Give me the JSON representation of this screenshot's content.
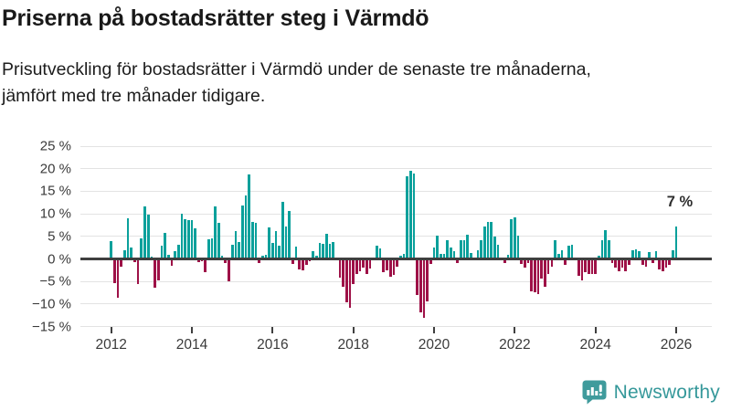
{
  "header": {
    "title": "Priserna på bostadsrätter steg i Värmdö",
    "subtitle": "Prisutveckling för bostadsrätter i Värmdö under de senaste tre månaderna, jämfört med tre månader tidigare."
  },
  "footer": {
    "brand": "Newsworthy",
    "logo_icon": "newsworthy-speech-bubble-with-bar-chart-icon"
  },
  "chart_data": {
    "type": "bar",
    "title": "Priserna på bostadsrätter steg i Värmdö",
    "unit": "%",
    "ylim": [
      -15,
      25
    ],
    "grid": true,
    "start_month": "2012-01",
    "frequency": "monthly",
    "y_ticks": [
      {
        "value": 25,
        "label": "25 %"
      },
      {
        "value": 20,
        "label": "20 %"
      },
      {
        "value": 15,
        "label": "15 %"
      },
      {
        "value": 10,
        "label": "10 %"
      },
      {
        "value": 5,
        "label": "5 %"
      },
      {
        "value": 0,
        "label": "0 %"
      },
      {
        "value": -5,
        "label": "−5 %"
      },
      {
        "value": -10,
        "label": "−10 %"
      },
      {
        "value": -15,
        "label": "−15 %"
      }
    ],
    "x_ticks": [
      {
        "label": "2012",
        "month_index": 0
      },
      {
        "label": "2014",
        "month_index": 24
      },
      {
        "label": "2016",
        "month_index": 48
      },
      {
        "label": "2018",
        "month_index": 72
      },
      {
        "label": "2020",
        "month_index": 96
      },
      {
        "label": "2022",
        "month_index": 120
      },
      {
        "label": "2024",
        "month_index": 144
      },
      {
        "label": "2026",
        "month_index": 168
      }
    ],
    "colors": {
      "positive": "#0aa09b",
      "negative": "#9e1147"
    },
    "annotation": {
      "text": "7 %",
      "value": 7.2,
      "month": "2026-01"
    },
    "monthly_change_pct": [
      {
        "year": 2012,
        "values": [
          4.0,
          -5.3,
          -8.7,
          -1.8,
          2.0,
          9.0,
          2.5,
          -0.8,
          -5.6,
          4.6,
          11.7,
          9.8
        ]
      },
      {
        "year": 2013,
        "values": [
          0.5,
          -6.3,
          -4.8,
          3.0,
          5.7,
          0.9,
          -1.5,
          1.7,
          3.2,
          10.1,
          8.8,
          8.6
        ]
      },
      {
        "year": 2014,
        "values": [
          8.6,
          6.8,
          -0.7,
          -0.6,
          -3.0,
          4.4,
          4.5,
          11.6,
          8.0,
          0.8,
          -0.9,
          -5.0
        ]
      },
      {
        "year": 2015,
        "values": [
          3.2,
          6.1,
          3.7,
          11.9,
          14.0,
          18.7,
          8.2,
          8.0,
          -0.9,
          0.8,
          1.0,
          6.9
        ]
      },
      {
        "year": 2016,
        "values": [
          3.5,
          6.2,
          3.0,
          12.7,
          7.1,
          10.6,
          -1.1,
          2.7,
          -2.4,
          -2.5,
          -1.4,
          -0.5
        ]
      },
      {
        "year": 2017,
        "values": [
          1.7,
          0.8,
          3.5,
          3.4,
          5.5,
          3.3,
          3.7,
          -0.4,
          -4.2,
          -6.2,
          -9.7,
          -10.8
        ]
      },
      {
        "year": 2018,
        "values": [
          -5.5,
          -3.4,
          -2.7,
          -1.9,
          -3.4,
          -2.2,
          -0.3,
          2.9,
          2.4,
          -3.0,
          -2.6,
          -3.9
        ]
      },
      {
        "year": 2019,
        "values": [
          -3.5,
          -1.7,
          0.7,
          1.1,
          18.3,
          19.6,
          19.0,
          -8.0,
          -11.8,
          -13.0,
          -9.4,
          -1.2
        ]
      },
      {
        "year": 2020,
        "values": [
          2.5,
          5.1,
          1.2,
          1.2,
          4.2,
          2.5,
          1.7,
          -0.9,
          4.2,
          4.2,
          5.4,
          1.3
        ]
      },
      {
        "year": 2021,
        "values": [
          0.2,
          2.0,
          4.2,
          7.2,
          8.3,
          8.3,
          5.0,
          3.1,
          -0.4,
          -1.0,
          1.0,
          8.8
        ]
      },
      {
        "year": 2022,
        "values": [
          9.2,
          5.1,
          -1.2,
          -2.0,
          -1.0,
          -7.1,
          -7.4,
          -7.8,
          -4.4,
          -6.2,
          -3.4,
          -1.7
        ]
      },
      {
        "year": 2023,
        "values": [
          4.1,
          1.2,
          2.0,
          -1.4,
          3.0,
          3.2,
          -0.4,
          -3.7,
          -4.7,
          -3.0,
          -3.4,
          -3.4
        ]
      },
      {
        "year": 2024,
        "values": [
          -3.4,
          0.8,
          4.2,
          6.4,
          4.2,
          -1.0,
          -2.0,
          -2.7,
          -2.0,
          -2.8,
          -1.4,
          2.0
        ]
      },
      {
        "year": 2025,
        "values": [
          2.2,
          1.8,
          -1.4,
          -1.8,
          1.5,
          -1.0,
          1.7,
          -2.3,
          -2.7,
          -2.0,
          -1.3,
          2.0
        ]
      },
      {
        "year": 2026,
        "values": [
          7.2
        ]
      }
    ]
  }
}
